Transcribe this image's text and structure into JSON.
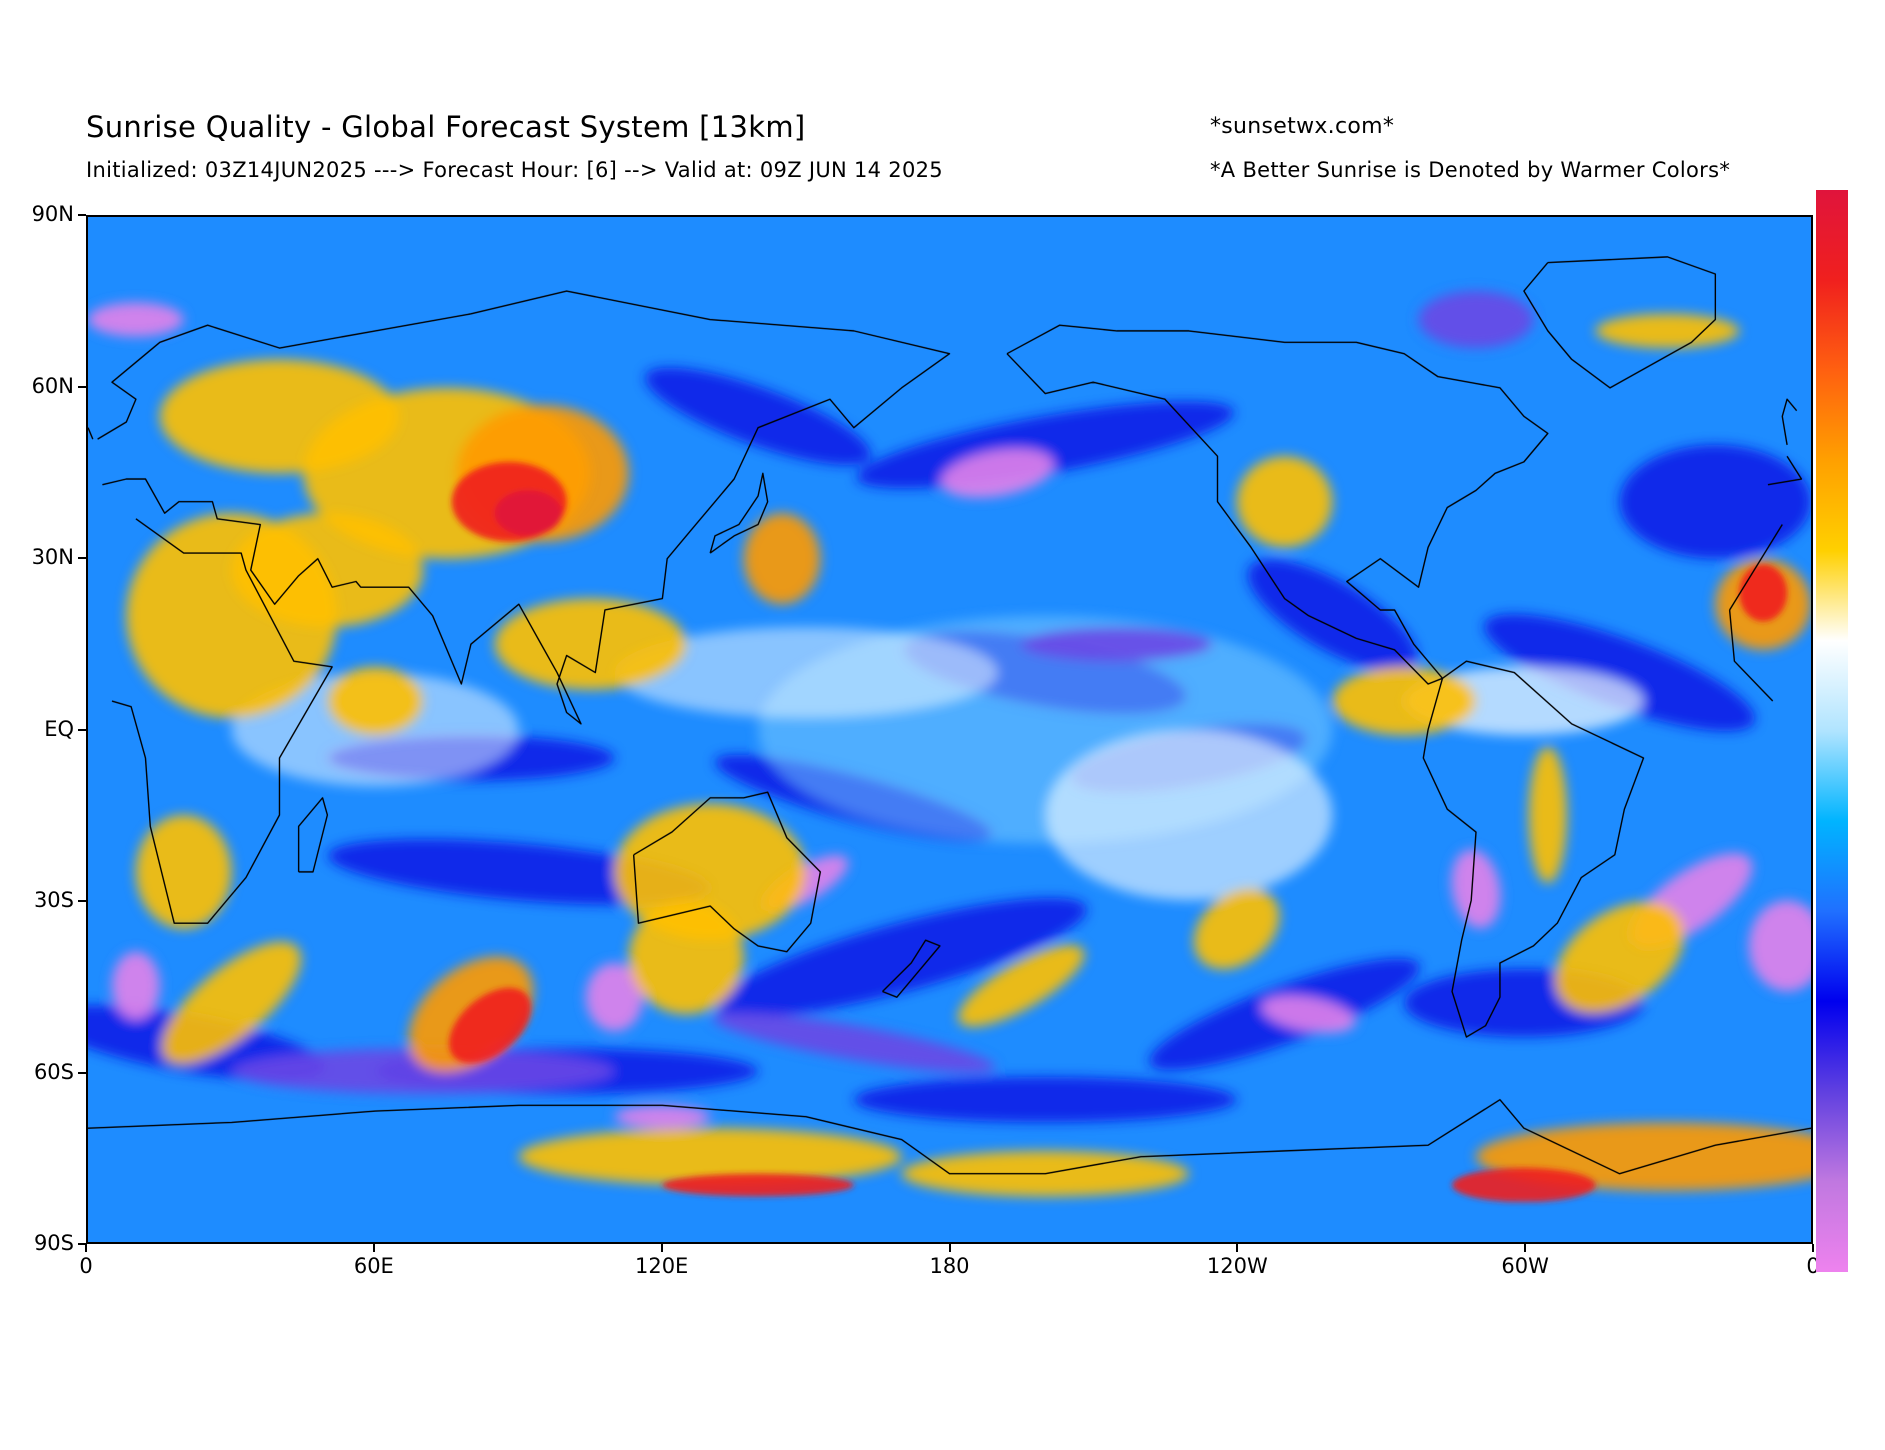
{
  "header": {
    "title": "Sunrise Quality - Global Forecast System [13km]",
    "subtitle": "Initialized: 03Z14JUN2025 ---> Forecast Hour: [6] --> Valid at: 09Z JUN 14 2025",
    "site": "*sunsetwx.com*",
    "note": "*A Better Sunrise is Denoted by Warmer Colors*"
  },
  "axes": {
    "lat_labels": [
      "90N",
      "60N",
      "30N",
      "EQ",
      "30S",
      "60S",
      "90S"
    ],
    "lon_labels": [
      "0",
      "60E",
      "120E",
      "180",
      "120W",
      "60W",
      "0"
    ],
    "lat_range": [
      -90,
      90
    ],
    "lon_range": [
      0,
      360
    ]
  },
  "colors": {
    "colorbar_top_to_bottom": [
      "#e0143c",
      "#f0201e",
      "#ff6010",
      "#ffa000",
      "#ffd000",
      "#ffffff",
      "#b0e4ff",
      "#00b4ff",
      "#2070ff",
      "#0000ee",
      "#6040e0",
      "#c078e0",
      "#ee82ee"
    ],
    "land_outline": "#000000"
  },
  "map": {
    "field": "sunrise quality",
    "background_color": "#1e8cff"
  }
}
